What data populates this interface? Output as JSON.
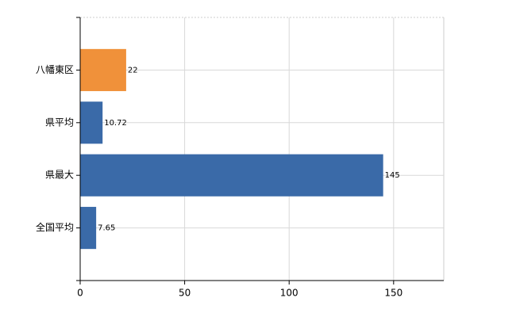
{
  "chart_data": {
    "type": "bar",
    "orientation": "horizontal",
    "categories": [
      "八幡東区",
      "県平均",
      "県最大",
      "全国平均"
    ],
    "values": [
      22,
      10.72,
      145,
      7.65
    ],
    "colors": [
      "#f0913a",
      "#3a6aa8",
      "#3a6aa8",
      "#3a6aa8"
    ],
    "xlim": [
      0,
      174
    ],
    "xticks": [
      0,
      50,
      100,
      150
    ],
    "grid": true
  }
}
